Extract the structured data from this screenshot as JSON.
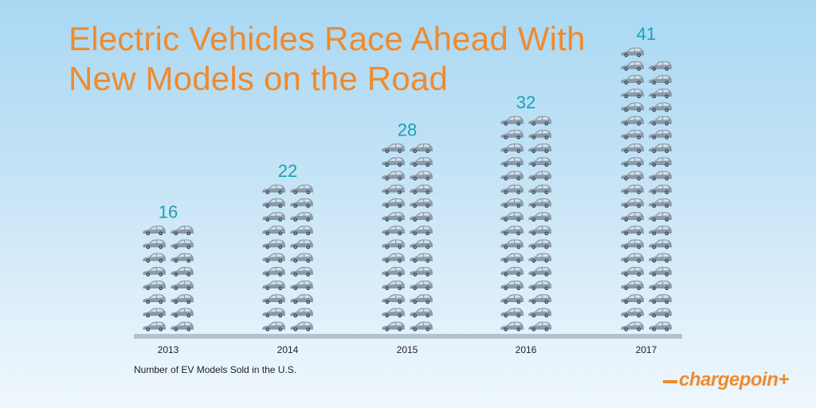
{
  "header": {
    "title_line1": "Electric Vehicles Race Ahead With",
    "title_line2": "New Models on the Road"
  },
  "caption": "Number of EV Models Sold in the U.S.",
  "brand": {
    "logo_text": "chargepoin+",
    "logo_color": "#f08a2c"
  },
  "chart_data": {
    "type": "bar",
    "subtype": "pictograph",
    "icon": "car-icon",
    "units_per_icon": 1,
    "title": "Electric Vehicles Race Ahead With New Models on the Road",
    "categories": [
      "2013",
      "2014",
      "2015",
      "2016",
      "2017"
    ],
    "values": [
      16,
      22,
      28,
      32,
      41
    ],
    "xlabel": "",
    "ylabel": "",
    "grid": false,
    "legend": "none",
    "colors": {
      "title": "#f08a2c",
      "value_labels": "#1aa0b8",
      "icons": "#8a9bab",
      "baseline": "#b4c3cb"
    }
  }
}
